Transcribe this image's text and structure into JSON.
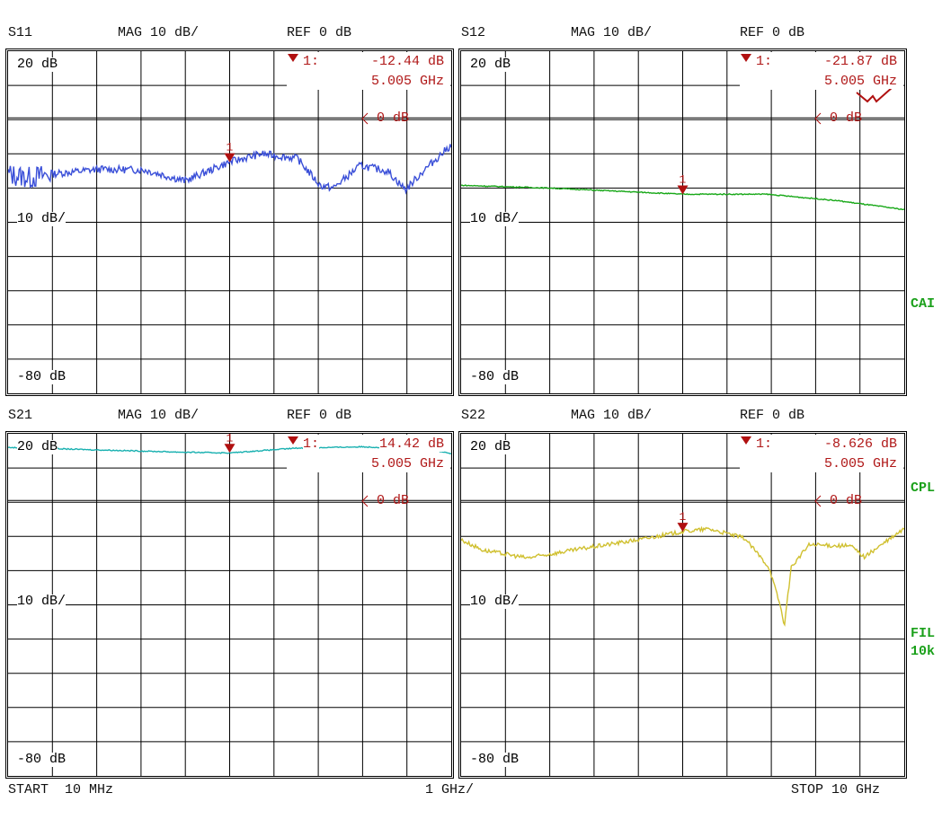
{
  "footer": {
    "start": "START  10 MHz",
    "span": "1 GHz/",
    "stop": "STOP 10 GHz"
  },
  "side_labels": [
    "CAI",
    "CPL",
    "FIL",
    "10k"
  ],
  "colors": {
    "s11": "#3a4fd8",
    "s12": "#18a818",
    "s21": "#18b0b0",
    "s22": "#d0c030",
    "marker": "#b01010",
    "grid": "#000000"
  },
  "chart_data": [
    {
      "type": "line",
      "title": "S11",
      "format": "MAG 10 dB/",
      "ref": "REF 0 dB",
      "top_label": "20 dB",
      "scale_label": "10 dB/",
      "bottom_label": "-80 dB",
      "ref_label": "0 dB",
      "ylim": [
        -80,
        20
      ],
      "xlim": [
        0.01,
        10
      ],
      "xunit": "GHz",
      "yunit": "dB",
      "grid": true,
      "marker": {
        "label": "1:",
        "num": "1",
        "value": "-12.44 dB",
        "freq": "5.005 GHz",
        "x": 5.005,
        "y": -12.44
      },
      "series": [
        {
          "name": "S11",
          "color": "#3a4fd8",
          "noise": 2.2,
          "x": [
            0.01,
            0.5,
            1.05,
            2.07,
            3.08,
            4.0,
            5.0,
            5.72,
            6.53,
            7.04,
            7.34,
            7.95,
            8.56,
            8.97,
            9.37,
            10
          ],
          "y": [
            -16,
            -17,
            -15.8,
            -14.5,
            -14.7,
            -17.9,
            -12.4,
            -10,
            -11.3,
            -19.2,
            -20,
            -13.4,
            -15,
            -20.5,
            -15,
            -7.4
          ]
        }
      ]
    },
    {
      "type": "line",
      "title": "S12",
      "format": "MAG 10 dB/",
      "ref": "REF 0 dB",
      "top_label": "20 dB",
      "scale_label": "10 dB/",
      "bottom_label": "-80 dB",
      "ref_label": "0 dB",
      "ylim": [
        -80,
        20
      ],
      "xlim": [
        0.01,
        10
      ],
      "xunit": "GHz",
      "yunit": "dB",
      "grid": true,
      "marker": {
        "label": "1:",
        "num": "1",
        "value": "-21.87 dB",
        "freq": "5.005 GHz",
        "x": 5.005,
        "y": -21.87
      },
      "series": [
        {
          "name": "S12",
          "color": "#18a818",
          "noise": 0.3,
          "x": [
            0.01,
            2.0,
            5.0,
            6.9,
            8.5,
            10
          ],
          "y": [
            -19.2,
            -20,
            -21.8,
            -21.8,
            -23.7,
            -26.3
          ]
        }
      ]
    },
    {
      "type": "line",
      "title": "S21",
      "format": "MAG 10 dB/",
      "ref": "REF 0 dB",
      "top_label": "20 dB",
      "scale_label": "10 dB/",
      "bottom_label": "-80 dB",
      "ref_label": "0 dB",
      "ylim": [
        -80,
        20
      ],
      "xlim": [
        0.01,
        10
      ],
      "xunit": "GHz",
      "yunit": "dB",
      "grid": true,
      "marker": {
        "label": "1:",
        "num": "1",
        "value": "14.42 dB",
        "freq": "5.005 GHz",
        "x": 5.005,
        "y": 14.42
      },
      "series": [
        {
          "name": "S21",
          "color": "#18b0b0",
          "noise": 0.3,
          "x": [
            0.01,
            2.0,
            4.0,
            5.0,
            6.5,
            8.0,
            9.5,
            10
          ],
          "y": [
            16,
            15.3,
            14.6,
            14.4,
            15.8,
            16.2,
            15.5,
            14.2
          ]
        }
      ]
    },
    {
      "type": "line",
      "title": "S22",
      "format": "MAG 10 dB/",
      "ref": "REF 0 dB",
      "top_label": "20 dB",
      "scale_label": "10 dB/",
      "bottom_label": "-80 dB",
      "ref_label": "0 dB",
      "ylim": [
        -80,
        20
      ],
      "xlim": [
        0.01,
        10
      ],
      "xunit": "GHz",
      "yunit": "dB",
      "grid": true,
      "marker": {
        "label": "1:",
        "num": "1",
        "value": "-8.626 dB",
        "freq": "5.005 GHz",
        "x": 5.005,
        "y": -8.626
      },
      "series": [
        {
          "name": "S22",
          "color": "#d0c030",
          "noise": 1.2,
          "x": [
            0.01,
            0.5,
            1.5,
            3.0,
            4.0,
            5.0,
            5.6,
            6.4,
            6.95,
            7.2,
            7.3,
            7.45,
            7.85,
            8.8,
            9.1,
            10
          ],
          "y": [
            -11,
            -14,
            -16.3,
            -13,
            -11,
            -8.6,
            -7.8,
            -10.5,
            -19,
            -30,
            -36,
            -19,
            -12.5,
            -12.8,
            -16,
            -7.8
          ]
        }
      ]
    }
  ]
}
